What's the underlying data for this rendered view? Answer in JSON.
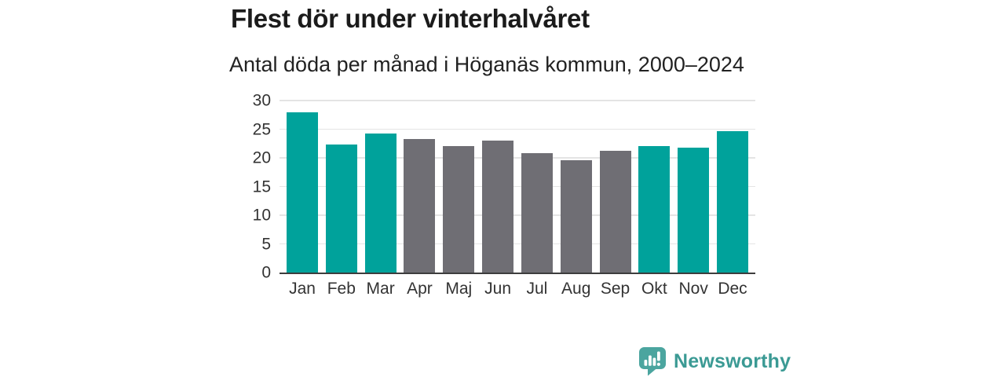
{
  "header": {
    "title": "Flest dör under vinterhalvåret",
    "subtitle": "Antal döda per månad i Höganäs kommun, 2000–2024"
  },
  "chart_data": {
    "type": "bar",
    "title": "Flest dör under vinterhalvåret",
    "subtitle": "Antal döda per månad i Höganäs kommun, 2000–2024",
    "categories": [
      "Jan",
      "Feb",
      "Mar",
      "Apr",
      "Maj",
      "Jun",
      "Jul",
      "Aug",
      "Sep",
      "Okt",
      "Nov",
      "Dec"
    ],
    "values": [
      27.9,
      22.3,
      24.3,
      23.3,
      22.1,
      23.0,
      20.8,
      19.6,
      21.3,
      22.0,
      21.8,
      24.6
    ],
    "bar_color_keys": [
      "winter",
      "winter",
      "winter",
      "summer",
      "summer",
      "summer",
      "summer",
      "summer",
      "summer",
      "winter",
      "winter",
      "winter"
    ],
    "colors": {
      "winter": "#00a29b",
      "summer": "#6f6e74"
    },
    "xlabel": "",
    "ylabel": "",
    "ylim": [
      0,
      30
    ],
    "yticks": [
      0,
      5,
      10,
      15,
      20,
      25,
      30
    ],
    "grid": true,
    "legend_position": "none"
  },
  "branding": {
    "logo_text": "Newsworthy",
    "logo_text_color": "#3b9a94",
    "logo_bubble_color": "#4ba59f",
    "logo_mark_color": "#ffffff",
    "logo_icon": "newsworthy-bubble-barchart-icon"
  }
}
